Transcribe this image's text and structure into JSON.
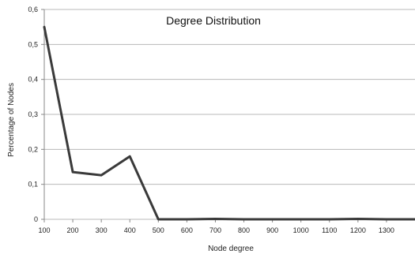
{
  "chart_data": {
    "type": "line",
    "title": "Degree Distribution",
    "xlabel": "Node degree",
    "ylabel": "Percentage of Nodes",
    "x": [
      100,
      200,
      300,
      400,
      500,
      600,
      700,
      800,
      900,
      1000,
      1100,
      1200,
      1300,
      1400
    ],
    "x_tick_labels": [
      "100",
      "200",
      "300",
      "400",
      "500",
      "600",
      "700",
      "800",
      "900",
      "1000",
      "1100",
      "1200",
      "1300"
    ],
    "y_tick_labels": [
      "0",
      "0,1",
      "0,2",
      "0,3",
      "0,4",
      "0,5",
      "0,6"
    ],
    "series": [
      {
        "values": [
          0.55,
          0.135,
          0.126,
          0.18,
          0.0,
          0.0,
          0.001,
          0.0,
          0.0,
          0.0,
          0.0,
          0.001,
          0.0,
          0.0
        ]
      }
    ],
    "ylim": [
      0,
      0.6
    ],
    "xlim": [
      100,
      1400
    ],
    "grid": "horizontal",
    "line_color": "#3a3a3a"
  }
}
